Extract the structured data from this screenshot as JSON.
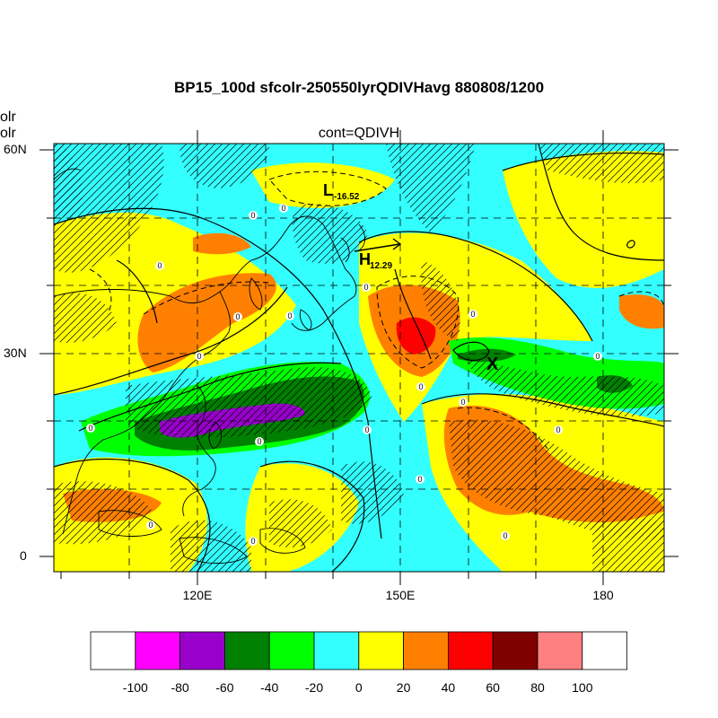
{
  "title": "BP15_100d sfcolr-250550lyrQDIVHavg  880808/1200",
  "subtitle": "cont=QDIVH",
  "left_labels": [
    "olr",
    "olr"
  ],
  "lat_ticks": [
    {
      "label": "60N",
      "lat": 60
    },
    {
      "label": "30N",
      "lat": 30
    },
    {
      "label": "0",
      "lat": 0
    }
  ],
  "lon_ticks": [
    {
      "label": "120E",
      "lon": 120
    },
    {
      "label": "150E",
      "lon": 150
    },
    {
      "label": "180",
      "lon": 180
    }
  ],
  "map_extent": {
    "lon": [
      100,
      190
    ],
    "lat": [
      -2,
      60
    ]
  },
  "pressure_labels": [
    {
      "letter": "L",
      "value": "-16.52"
    },
    {
      "letter": "H",
      "value": "12.29"
    }
  ],
  "marker": "X",
  "contour_labels": [
    "0",
    "0",
    "0",
    "0",
    "0",
    "0",
    "0",
    "0",
    "0",
    "0",
    "0",
    "0",
    "0",
    "0",
    "0",
    "0",
    "0",
    "0",
    "0"
  ],
  "colorbar": {
    "colors": [
      "#ffffff",
      "#ff00ff",
      "#9900cc",
      "#008000",
      "#00ff00",
      "#33ffff",
      "#ffff00",
      "#ff8000",
      "#ff0000",
      "#800000",
      "#ff8080",
      "#ffffff"
    ],
    "labels": [
      "-100",
      "-80",
      "-60",
      "-40",
      "-20",
      "0",
      "20",
      "40",
      "60",
      "80",
      "100"
    ]
  },
  "palette": {
    "cyan": "#33ffff",
    "yellow": "#ffff00",
    "orange": "#ff8000",
    "red": "#ff0000",
    "green": "#00ff00",
    "darkgreen": "#008000",
    "purple": "#9900cc"
  }
}
